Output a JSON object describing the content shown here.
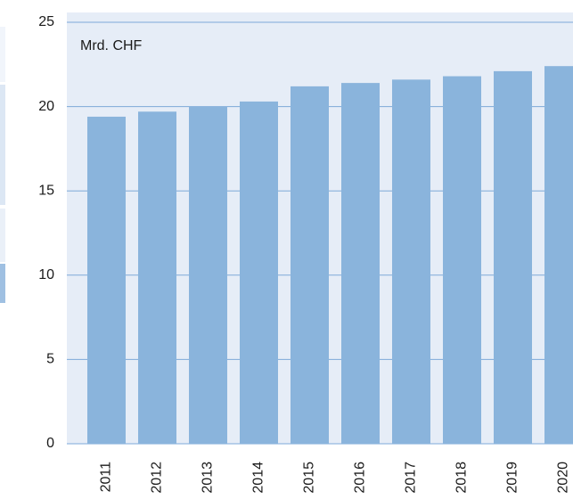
{
  "chart_data": {
    "type": "bar",
    "unit_label": "Mrd. CHF",
    "categories": [
      "2011",
      "2012",
      "2013",
      "2014",
      "2015",
      "2016",
      "2017",
      "2018",
      "2019",
      "2020"
    ],
    "values": [
      19.4,
      19.7,
      20.0,
      20.3,
      21.2,
      21.4,
      21.6,
      21.8,
      22.1,
      22.4
    ],
    "color": "#8ab4dc",
    "ylim": [
      0,
      25
    ],
    "yticks": [
      0,
      5,
      10,
      15,
      20,
      25
    ],
    "grid": true
  }
}
